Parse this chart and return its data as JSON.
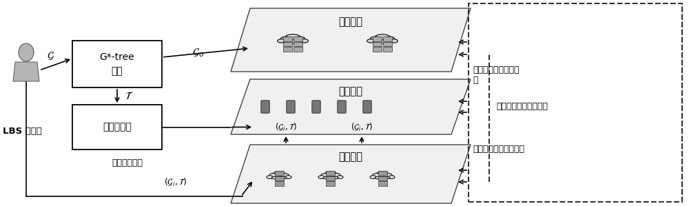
{
  "bg_color": "#ffffff",
  "box1_label": "G*-tree\n构建",
  "box2_label": "叶节点分解",
  "lbs_label": "LBS 提供商",
  "realtime_label": "实时路况数据",
  "cloud_title": "云服务器",
  "mobile_title": "移动用户",
  "fog_title": "雾服务器",
  "static_top": "静态路径规划中的交\n互",
  "intelligent": "智能路径规划中的交互",
  "static_bot": "静态路径规划中的交互",
  "gi_T": "($\\mathcal{G}_i, \\mathcal{T}$)",
  "go_label": "$\\mathcal{G}_o$",
  "G_label": "$\\mathcal{G}$",
  "T_label": "$\\mathcal{T}$"
}
